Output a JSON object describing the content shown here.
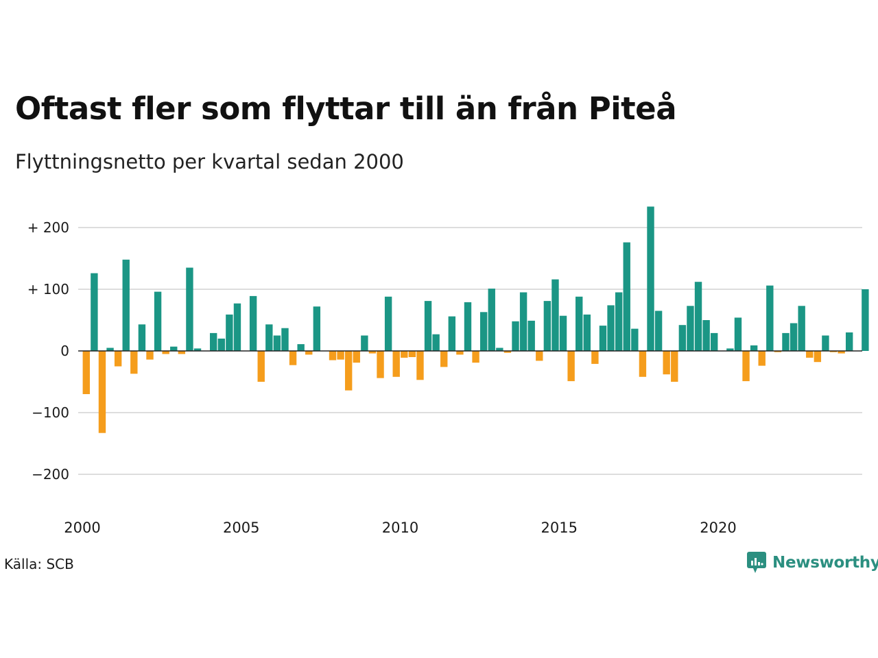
{
  "title": "Oftast fler som flyttar till än från Piteå",
  "subtitle": "Flyttningsnetto per kvartal sedan 2000",
  "source": "Källa: SCB",
  "brand": {
    "name": "Newsworthy",
    "icon": "newsworthy-logo-icon"
  },
  "colors": {
    "positive": "#1b9685",
    "negative": "#f59d1c",
    "grid": "#dddddd",
    "zero": "#222222"
  },
  "chart_data": {
    "type": "bar",
    "title": "Oftast fler som flyttar till än från Piteå",
    "subtitle": "Flyttningsnetto per kvartal sedan 2000",
    "xlabel": "",
    "ylabel": "",
    "x_start": 2000,
    "x_step": 0.25,
    "xlim": [
      2000,
      2024.75
    ],
    "ylim": [
      -250,
      250
    ],
    "grid": true,
    "legend": "none",
    "x_ticks": [
      2000,
      2005,
      2010,
      2015,
      2020
    ],
    "x_tick_labels": [
      "2000",
      "2005",
      "2010",
      "2015",
      "2020"
    ],
    "y_ticks": [
      200,
      100,
      0,
      -100,
      -200
    ],
    "y_tick_labels": [
      "+ 200",
      "+ 100",
      "0",
      "−100",
      "−200"
    ],
    "values": [
      -70,
      126,
      -133,
      5,
      -25,
      148,
      -37,
      43,
      -14,
      96,
      -5,
      7,
      -5,
      135,
      4,
      0,
      29,
      20,
      59,
      77,
      0,
      89,
      -50,
      43,
      25,
      37,
      -23,
      11,
      -6,
      72,
      0,
      -15,
      -14,
      -64,
      -19,
      25,
      -4,
      -44,
      88,
      -42,
      -11,
      -10,
      -47,
      81,
      27,
      -26,
      56,
      -6,
      79,
      -19,
      63,
      101,
      5,
      -3,
      48,
      95,
      49,
      -16,
      81,
      116,
      57,
      -49,
      88,
      59,
      -21,
      41,
      74,
      95,
      176,
      36,
      -42,
      234,
      65,
      -38,
      -50,
      42,
      73,
      112,
      50,
      29,
      0,
      4,
      54,
      -49,
      9,
      -24,
      106,
      -2,
      29,
      45,
      73,
      -11,
      -18,
      25,
      -2,
      -4,
      30,
      0,
      100
    ]
  }
}
